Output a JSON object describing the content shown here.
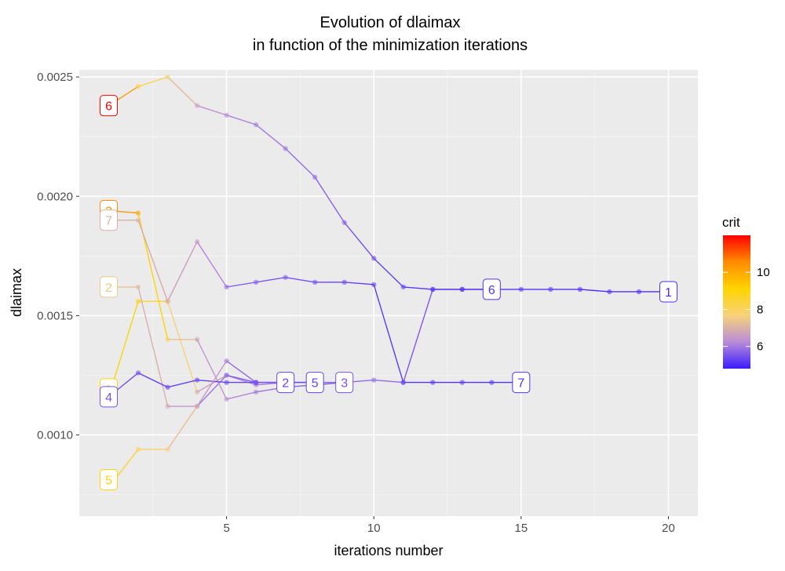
{
  "chart_data": {
    "type": "line",
    "title": "Evolution of dlaimax",
    "subtitle": "in function of the minimization iterations",
    "xlabel": "iterations number",
    "ylabel": "dlaimax",
    "xlim": [
      0.0,
      21.0
    ],
    "ylim": [
      0.00066,
      0.00253
    ],
    "x_ticks": [
      5,
      10,
      15,
      20
    ],
    "y_ticks": [
      0.001,
      0.0015,
      0.002,
      0.0025
    ],
    "x_tick_labels": [
      "5",
      "10",
      "15",
      "20"
    ],
    "y_tick_labels": [
      "0.0010",
      "0.0015",
      "0.0020",
      "0.0025"
    ],
    "grid": true,
    "legend": {
      "title": "crit",
      "position": "right",
      "min": 4.8,
      "max": 12.0,
      "ticks": [
        6,
        8,
        10
      ],
      "tick_labels": [
        "6",
        "8",
        "10"
      ],
      "colors": [
        "#3a1cff",
        "#b98cd8",
        "#f8d27a",
        "#ffd400",
        "#ff8c00",
        "#ff0000"
      ]
    },
    "series": [
      {
        "label": "1",
        "start_label": "1",
        "end_label": "1",
        "points": [
          [
            1,
            0.00116,
            9.0
          ],
          [
            2,
            0.00156,
            9.0
          ],
          [
            3,
            0.00156,
            8.3
          ],
          [
            4,
            0.00118,
            7.0
          ],
          [
            5,
            0.00125,
            6.2
          ],
          [
            6,
            0.00121,
            6.0
          ],
          [
            7,
            0.00122,
            5.9
          ],
          [
            8,
            0.00122,
            5.8
          ],
          [
            9,
            0.00122,
            5.8
          ],
          [
            10,
            0.00123,
            5.8
          ],
          [
            11,
            0.00122,
            5.8
          ],
          [
            12,
            0.00161,
            5.4
          ],
          [
            13,
            0.00161,
            5.2
          ],
          [
            14,
            0.00161,
            5.1
          ],
          [
            15,
            0.00161,
            5.1
          ],
          [
            16,
            0.00161,
            5.1
          ],
          [
            17,
            0.00161,
            5.0
          ],
          [
            18,
            0.0016,
            5.0
          ],
          [
            19,
            0.0016,
            5.0
          ],
          [
            20,
            0.0016,
            5.0
          ]
        ]
      },
      {
        "label": "2",
        "start_label": "2",
        "end_label": "2",
        "points": [
          [
            1,
            0.00162,
            7.5
          ],
          [
            2,
            0.00162,
            7.2
          ],
          [
            3,
            0.00112,
            6.8
          ],
          [
            4,
            0.00112,
            6.2
          ],
          [
            5,
            0.00125,
            5.7
          ],
          [
            6,
            0.00122,
            5.5
          ],
          [
            7,
            0.00122,
            5.3
          ]
        ]
      },
      {
        "label": "3",
        "start_label": "3",
        "end_label": "3",
        "points": [
          [
            1,
            0.00194,
            10.5
          ],
          [
            2,
            0.00193,
            10.2
          ],
          [
            3,
            0.0014,
            8.0
          ],
          [
            4,
            0.0014,
            6.6
          ],
          [
            5,
            0.00115,
            6.3
          ],
          [
            6,
            0.00118,
            6.0
          ],
          [
            7,
            0.0012,
            5.8
          ],
          [
            8,
            0.00121,
            5.6
          ],
          [
            9,
            0.00122,
            5.5
          ]
        ]
      },
      {
        "label": "4",
        "start_label": "4",
        "end_label": "",
        "points": [
          [
            1,
            0.00116,
            5.5
          ],
          [
            2,
            0.00126,
            5.4
          ],
          [
            3,
            0.0012,
            5.3
          ],
          [
            4,
            0.00123,
            5.3
          ],
          [
            5,
            0.00122,
            5.3
          ],
          [
            6,
            0.00122,
            5.3
          ]
        ]
      },
      {
        "label": "5",
        "start_label": "5",
        "end_label": "5",
        "points": [
          [
            1,
            0.00078,
            9.0
          ],
          [
            2,
            0.00094,
            8.0
          ],
          [
            3,
            0.00094,
            7.6
          ],
          [
            4,
            0.00112,
            7.0
          ],
          [
            5,
            0.00131,
            6.0
          ],
          [
            6,
            0.00122,
            5.6
          ],
          [
            7,
            0.00122,
            5.4
          ],
          [
            8,
            0.00122,
            5.3
          ]
        ]
      },
      {
        "label": "6",
        "start_label": "6",
        "end_label": "6",
        "points": [
          [
            1,
            0.00238,
            12.0
          ],
          [
            2,
            0.00246,
            8.5
          ],
          [
            3,
            0.0025,
            7.8
          ],
          [
            4,
            0.00238,
            6.6
          ],
          [
            5,
            0.00234,
            6.2
          ],
          [
            6,
            0.0023,
            6.0
          ],
          [
            7,
            0.0022,
            5.9
          ],
          [
            8,
            0.00208,
            5.8
          ],
          [
            9,
            0.00189,
            5.6
          ],
          [
            10,
            0.00174,
            5.4
          ],
          [
            11,
            0.00162,
            5.2
          ],
          [
            12,
            0.00161,
            5.1
          ],
          [
            13,
            0.00161,
            5.1
          ],
          [
            14,
            0.00161,
            5.1
          ]
        ]
      },
      {
        "label": "7",
        "start_label": "7",
        "end_label": "7",
        "points": [
          [
            1,
            0.0019,
            7.0
          ],
          [
            2,
            0.0019,
            7.0
          ],
          [
            3,
            0.00156,
            6.8
          ],
          [
            4,
            0.00181,
            6.5
          ],
          [
            5,
            0.00162,
            5.8
          ],
          [
            6,
            0.00164,
            5.6
          ],
          [
            7,
            0.00166,
            5.5
          ],
          [
            8,
            0.00164,
            5.4
          ],
          [
            9,
            0.00164,
            5.3
          ],
          [
            10,
            0.00163,
            5.2
          ],
          [
            11,
            0.00122,
            5.2
          ],
          [
            12,
            0.00122,
            5.1
          ],
          [
            13,
            0.00122,
            5.1
          ],
          [
            14,
            0.00122,
            5.1
          ],
          [
            15,
            0.00122,
            5.1
          ]
        ]
      }
    ]
  }
}
